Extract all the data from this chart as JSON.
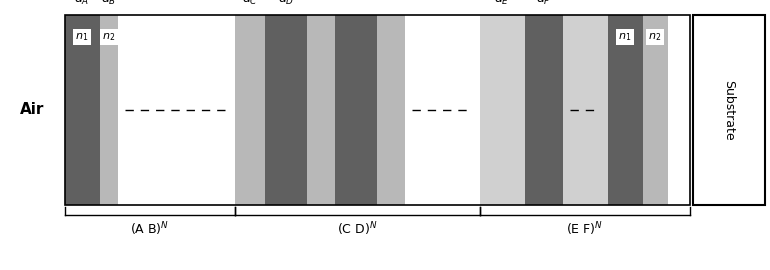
{
  "fig_width": 7.7,
  "fig_height": 2.7,
  "dpi": 100,
  "bg_color": "#ffffff",
  "dark_gray": "#606060",
  "medium_gray": "#909090",
  "light_gray": "#b8b8b8",
  "very_light_gray": "#d0d0d0",
  "air_label": "Air",
  "substrate_label": "Substrate",
  "group_label_1": "(A B)$^N$",
  "group_label_2": "(C D)$^N$",
  "group_label_3": "(E F)$^N$"
}
